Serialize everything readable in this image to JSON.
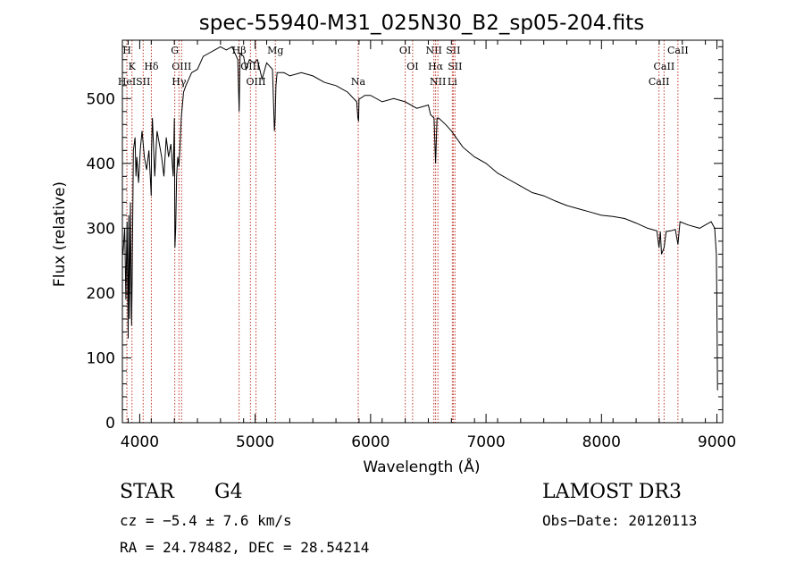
{
  "chart_data": {
    "type": "line",
    "title": "spec-55940-M31_025N30_B2_sp05-204.fits",
    "xlabel": "Wavelength (Å)",
    "ylabel": "Flux (relative)",
    "xlim": [
      3850,
      9050
    ],
    "ylim": [
      0,
      590
    ],
    "xticks": [
      4000,
      5000,
      6000,
      7000,
      8000,
      9000
    ],
    "yticks": [
      0,
      100,
      200,
      300,
      400,
      500
    ],
    "grid": false,
    "series": [
      {
        "name": "flux",
        "x": [
          3855,
          3870,
          3880,
          3890,
          3900,
          3905,
          3912,
          3920,
          3930,
          3935,
          3945,
          3960,
          3968,
          3975,
          3990,
          4005,
          4020,
          4040,
          4060,
          4080,
          4100,
          4102,
          4110,
          4130,
          4150,
          4170,
          4190,
          4210,
          4230,
          4250,
          4270,
          4290,
          4300,
          4305,
          4312,
          4320,
          4330,
          4340,
          4350,
          4360,
          4380,
          4400,
          4450,
          4500,
          4550,
          4600,
          4650,
          4700,
          4750,
          4800,
          4850,
          4861,
          4870,
          4900,
          4920,
          4950,
          4990,
          5020,
          5060,
          5100,
          5150,
          5167,
          5173,
          5180,
          5190,
          5250,
          5300,
          5400,
          5500,
          5600,
          5700,
          5800,
          5880,
          5890,
          5896,
          5900,
          5910,
          5950,
          6000,
          6100,
          6200,
          6300,
          6400,
          6500,
          6520,
          6550,
          6563,
          6575,
          6590,
          6650,
          6700,
          6800,
          6900,
          7000,
          7100,
          7200,
          7300,
          7400,
          7500,
          7600,
          7700,
          7800,
          7900,
          8000,
          8100,
          8200,
          8300,
          8400,
          8480,
          8498,
          8510,
          8520,
          8542,
          8560,
          8600,
          8640,
          8662,
          8680,
          8750,
          8850,
          8900,
          8950,
          8980,
          8995,
          9000,
          9005
        ],
        "values": [
          260,
          300,
          190,
          310,
          130,
          320,
          160,
          340,
          150,
          230,
          420,
          440,
          380,
          410,
          370,
          420,
          450,
          410,
          390,
          420,
          350,
          420,
          470,
          380,
          450,
          430,
          410,
          380,
          440,
          410,
          430,
          380,
          470,
          270,
          300,
          380,
          410,
          395,
          430,
          470,
          510,
          520,
          540,
          545,
          565,
          570,
          575,
          580,
          575,
          580,
          560,
          480,
          570,
          565,
          545,
          560,
          555,
          560,
          530,
          555,
          545,
          450,
          470,
          520,
          540,
          540,
          535,
          540,
          535,
          525,
          520,
          510,
          495,
          470,
          465,
          500,
          500,
          505,
          505,
          495,
          500,
          495,
          485,
          490,
          475,
          470,
          400,
          470,
          470,
          460,
          450,
          425,
          410,
          400,
          385,
          375,
          365,
          355,
          350,
          342,
          335,
          330,
          325,
          320,
          318,
          315,
          308,
          300,
          296,
          270,
          295,
          260,
          270,
          295,
          296,
          298,
          275,
          310,
          305,
          300,
          305,
          310,
          300,
          260,
          180,
          50
        ]
      }
    ],
    "line_markers": [
      {
        "label": "H",
        "x": 3889,
        "row": 0
      },
      {
        "label": "K",
        "x": 3933,
        "row": 1
      },
      {
        "label": "HeI",
        "x": 3889,
        "row": 2
      },
      {
        "label": "SII",
        "x": 4030,
        "row": 2
      },
      {
        "label": "Hδ",
        "x": 4101,
        "row": 1
      },
      {
        "label": "G",
        "x": 4304,
        "row": 0
      },
      {
        "label": "OIII",
        "x": 4363,
        "row": 1
      },
      {
        "label": "Hγ",
        "x": 4340,
        "row": 2
      },
      {
        "label": "Hβ",
        "x": 4861,
        "row": 0
      },
      {
        "label": "OIII",
        "x": 4959,
        "row": 1
      },
      {
        "label": "OIII",
        "x": 5007,
        "row": 2
      },
      {
        "label": "Mg",
        "x": 5175,
        "row": 0
      },
      {
        "label": "Na",
        "x": 5893,
        "row": 2
      },
      {
        "label": "OI",
        "x": 6300,
        "row": 0
      },
      {
        "label": "OI",
        "x": 6364,
        "row": 1
      },
      {
        "label": "NII",
        "x": 6548,
        "row": 0
      },
      {
        "label": "Hα",
        "x": 6563,
        "row": 1
      },
      {
        "label": "NII",
        "x": 6583,
        "row": 2
      },
      {
        "label": "SII",
        "x": 6716,
        "row": 0
      },
      {
        "label": "SII",
        "x": 6731,
        "row": 1
      },
      {
        "label": "Li",
        "x": 6708,
        "row": 2
      },
      {
        "label": "CaII",
        "x": 8662,
        "row": 0
      },
      {
        "label": "CaII",
        "x": 8542,
        "row": 1
      },
      {
        "label": "CaII",
        "x": 8498,
        "row": 2
      }
    ]
  },
  "info": {
    "class": "STAR",
    "subclass": "G4",
    "survey": "LAMOST DR3",
    "cz": "cz = −5.4 ± 7.6 km/s",
    "obs_date": "Obs−Date: 20120113",
    "coords": "RA =  24.78482, DEC =  28.54214"
  }
}
